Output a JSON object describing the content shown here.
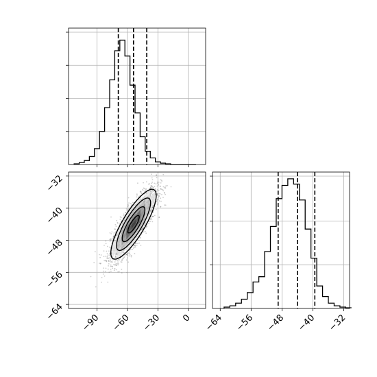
{
  "chart_data": {
    "type": "corner",
    "title": "",
    "params": [
      "",
      ""
    ],
    "grid": true,
    "panels": {
      "hist_x": {
        "type": "histogram",
        "xlim": [
          -118,
          17
        ],
        "ylim": [
          0,
          1.0
        ],
        "yticks": [
          0.25,
          0.5,
          0.75,
          1.0
        ],
        "bin_edges": [
          -112.5,
          -107.5,
          -102.5,
          -97.5,
          -92.5,
          -87.5,
          -82.5,
          -77.5,
          -72.5,
          -67.5,
          -62.5,
          -57.5,
          -52.5,
          -47.5,
          -42.5,
          -37.5,
          -32.5,
          -27.5,
          -22.5,
          -17.5,
          -12.5,
          -7.5,
          -2.5,
          2.5,
          7.5
        ],
        "heights": [
          0.005,
          0.015,
          0.03,
          0.06,
          0.12,
          0.25,
          0.43,
          0.64,
          0.86,
          0.94,
          0.82,
          0.6,
          0.39,
          0.21,
          0.1,
          0.05,
          0.02,
          0.01,
          0.005,
          0.0,
          0.0,
          0.0,
          0.0,
          0.0
        ],
        "quantiles": [
          -69,
          -54,
          -41
        ]
      },
      "scatter_xy": {
        "type": "2d-density",
        "xlim": [
          -118,
          17
        ],
        "ylim": [
          -65,
          -31
        ],
        "xticks": [
          -90,
          -60,
          -30,
          0
        ],
        "yticks": [
          -32,
          -40,
          -48,
          -56,
          -64
        ],
        "mean": [
          -54,
          -44
        ],
        "cov": [
          [
            125,
            40
          ],
          [
            40,
            19
          ]
        ],
        "n_points": 2600,
        "contour_levels": [
          0.5,
          1.0,
          1.5,
          2.0
        ]
      },
      "hist_y": {
        "type": "histogram",
        "xlim": [
          -66,
          -30.5
        ],
        "ylim": [
          0,
          1.0
        ],
        "yticks": [
          0.33,
          0.66,
          1.0
        ],
        "bin_edges": [
          -63,
          -61.5,
          -60,
          -58.5,
          -57,
          -55.5,
          -54,
          -52.5,
          -51,
          -49.5,
          -48,
          -46.5,
          -45,
          -43.5,
          -42,
          -40.5,
          -39,
          -37.5,
          -36,
          -34.5,
          -33,
          -31.5,
          -30
        ],
        "heights": [
          0.01,
          0.02,
          0.04,
          0.07,
          0.12,
          0.2,
          0.24,
          0.43,
          0.62,
          0.83,
          0.93,
          0.98,
          0.94,
          0.82,
          0.6,
          0.38,
          0.17,
          0.09,
          0.04,
          0.02,
          0.01,
          0.005
        ],
        "quantiles": [
          -49,
          -44,
          -39.5
        ]
      }
    },
    "tick_labels": {
      "hist_x_x": [
        "",
        "",
        "",
        ""
      ],
      "hist_y_y": [
        "",
        "",
        ""
      ],
      "scatter_x": [
        "−90",
        "−60",
        "−30",
        "0"
      ],
      "scatter_y": [
        "−32",
        "−40",
        "−48",
        "−56",
        "−64"
      ],
      "hist_y_x": [
        "−64",
        "−56",
        "−48",
        "−40",
        "−32"
      ]
    }
  }
}
